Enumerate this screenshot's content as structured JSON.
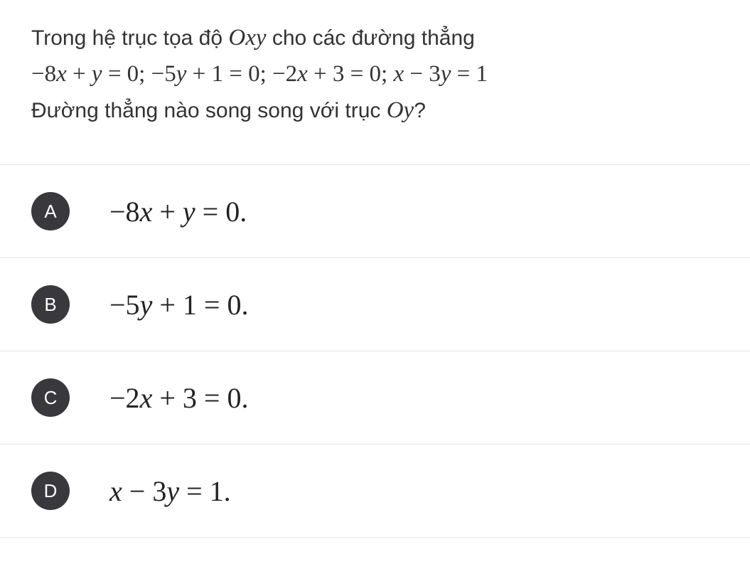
{
  "question": {
    "line1_prefix": "Trong hệ trục tọa độ ",
    "line1_math": "Oxy",
    "line1_suffix": " cho các đường thẳng",
    "line2_eq1_lhs": "−8",
    "line2_eq1_x": "x",
    "line2_eq1_plus": " + ",
    "line2_eq1_y": "y",
    "line2_eq1_rhs": " = 0; ",
    "line2_eq2_lhs": "−5",
    "line2_eq2_y": "y",
    "line2_eq2_plus": " + 1 = 0; ",
    "line2_eq3_lhs": "−2",
    "line2_eq3_x": "x",
    "line2_eq3_rhs": " + 3 = 0; ",
    "line2_eq4_x": "x",
    "line2_eq4_mid": " − 3",
    "line2_eq4_y": "y",
    "line2_eq4_rhs": " = 1",
    "line3_prefix": "Đường thẳng nào song song với trục ",
    "line3_math": "Oy",
    "line3_suffix": "?"
  },
  "options": [
    {
      "letter": "A",
      "parts": [
        {
          "t": "−8",
          "style": "up"
        },
        {
          "t": "x",
          "style": "it"
        },
        {
          "t": " + ",
          "style": "up"
        },
        {
          "t": "y",
          "style": "it"
        },
        {
          "t": " = 0.",
          "style": "up"
        }
      ]
    },
    {
      "letter": "B",
      "parts": [
        {
          "t": "−5",
          "style": "up"
        },
        {
          "t": "y",
          "style": "it"
        },
        {
          "t": " + 1 = 0.",
          "style": "up"
        }
      ]
    },
    {
      "letter": "C",
      "parts": [
        {
          "t": "−2",
          "style": "up"
        },
        {
          "t": "x",
          "style": "it"
        },
        {
          "t": " + 3 = 0.",
          "style": "up"
        }
      ]
    },
    {
      "letter": "D",
      "parts": [
        {
          "t": "x",
          "style": "it"
        },
        {
          "t": " − 3",
          "style": "up"
        },
        {
          "t": "y",
          "style": "it"
        },
        {
          "t": " = 1.",
          "style": "up"
        }
      ]
    }
  ],
  "colors": {
    "text": "#333333",
    "badge_bg": "#39383d",
    "badge_fg": "#ffffff",
    "divider": "#e6e6e6",
    "background": "#ffffff"
  }
}
